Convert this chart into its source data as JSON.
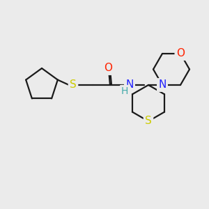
{
  "background_color": "#ebebeb",
  "bond_color": "#1a1a1a",
  "atom_colors": {
    "S": "#cccc00",
    "O": "#ff2200",
    "N": "#2222ff",
    "H": "#44aaaa",
    "C": "#1a1a1a"
  },
  "font_size_atoms": 10,
  "fig_size": [
    3.0,
    3.0
  ],
  "dpi": 100
}
